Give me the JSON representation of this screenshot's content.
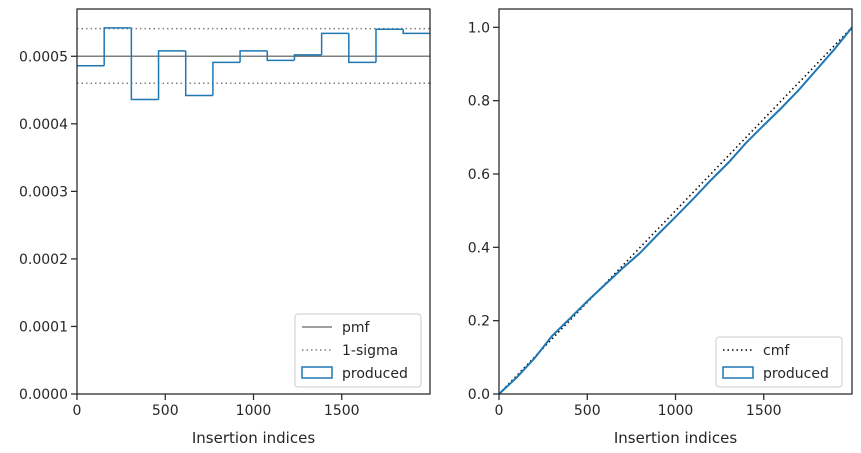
{
  "chart_data": [
    {
      "type": "histogram",
      "xlabel": "Insertion indices",
      "ylabel": "",
      "xlim": [
        0,
        2000
      ],
      "ylim": [
        0,
        0.00057
      ],
      "x_ticks": [
        0,
        500,
        1000,
        1500
      ],
      "x_tick_labels": [
        "0",
        "500",
        "1000",
        "1500"
      ],
      "y_ticks": [
        0,
        0.0001,
        0.0002,
        0.0003,
        0.0004,
        0.0005
      ],
      "y_tick_labels": [
        "0.0000",
        "0.0001",
        "0.0002",
        "0.0003",
        "0.0004",
        "0.0005"
      ],
      "grid": false,
      "legend_position": "lower-right",
      "pmf": {
        "name": "pmf",
        "value": 0.0005,
        "color": "#808080"
      },
      "sigma": {
        "name": "1-sigma",
        "lower": 0.00046,
        "upper": 0.000541,
        "color": "#808080"
      },
      "produced": {
        "name": "produced",
        "color": "#1f77b4",
        "bin_edges": [
          0,
          154,
          308,
          462,
          616,
          770,
          924,
          1078,
          1232,
          1386,
          1540,
          1694,
          1848,
          2000
        ],
        "values": [
          0.000486,
          0.000542,
          0.000436,
          0.000508,
          0.000442,
          0.000491,
          0.000508,
          0.000494,
          0.000502,
          0.000534,
          0.000491,
          0.00054,
          0.000534
        ]
      }
    },
    {
      "type": "line",
      "xlabel": "Insertion indices",
      "ylabel": "",
      "xlim": [
        0,
        2000
      ],
      "ylim": [
        0,
        1.05
      ],
      "x_ticks": [
        0,
        500,
        1000,
        1500
      ],
      "x_tick_labels": [
        "0",
        "500",
        "1000",
        "1500"
      ],
      "y_ticks": [
        0,
        0.2,
        0.4,
        0.6,
        0.8,
        1.0
      ],
      "y_tick_labels": [
        "0.0",
        "0.2",
        "0.4",
        "0.6",
        "0.8",
        "1.0"
      ],
      "grid": false,
      "legend_position": "lower-right",
      "series": [
        {
          "name": "cmf",
          "style": "dotted",
          "color": "#000000",
          "x": [
            0,
            2000
          ],
          "y": [
            0,
            1.0
          ]
        },
        {
          "name": "produced",
          "style": "solid",
          "color": "#1f77b4",
          "x": [
            0,
            100,
            200,
            300,
            400,
            500,
            600,
            700,
            800,
            900,
            1000,
            1100,
            1200,
            1300,
            1400,
            1500,
            1600,
            1700,
            1800,
            1900,
            2000
          ],
          "y": [
            0,
            0.045,
            0.097,
            0.158,
            0.205,
            0.253,
            0.298,
            0.343,
            0.385,
            0.435,
            0.483,
            0.532,
            0.583,
            0.631,
            0.685,
            0.733,
            0.78,
            0.83,
            0.885,
            0.94,
            1.0
          ]
        }
      ]
    }
  ]
}
